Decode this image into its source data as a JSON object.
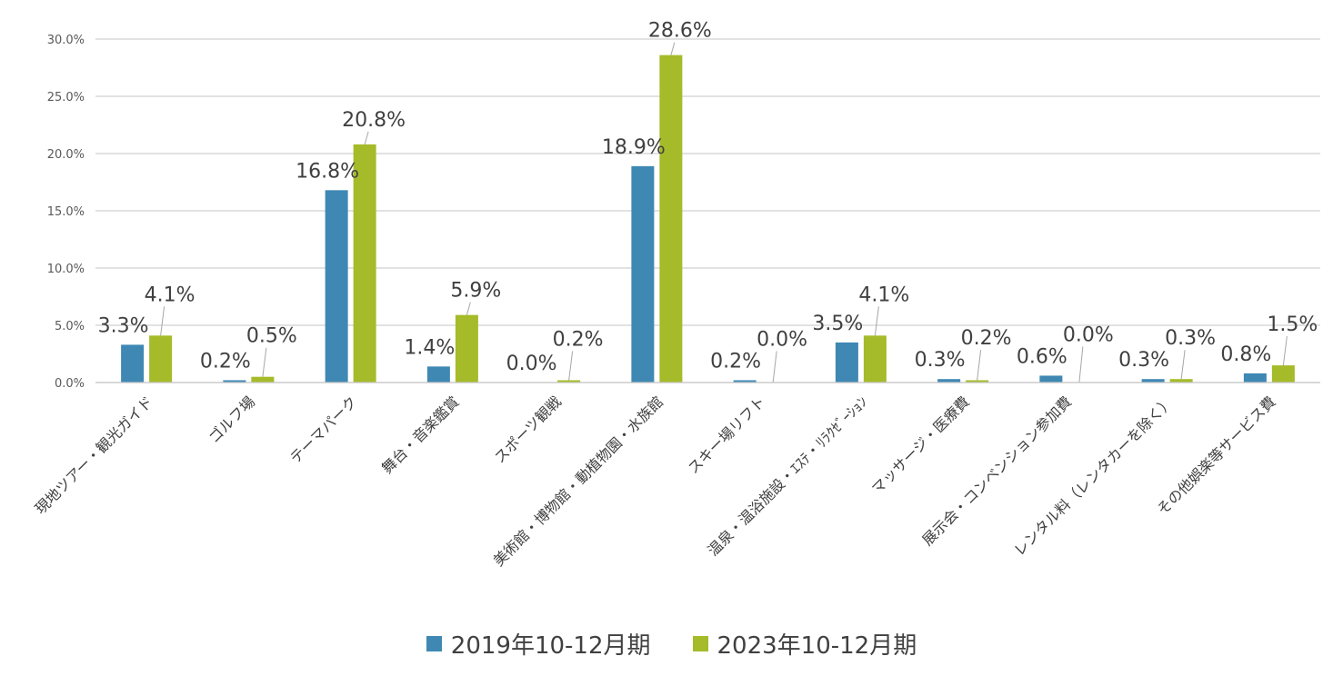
{
  "chart_data": {
    "type": "bar",
    "categories": [
      "現地ツアー・観光ガイド",
      "ゴルフ場",
      "テーマパーク",
      "舞台・音楽鑑賞",
      "スポーツ観戦",
      "美術館・博物館・動植物園・水族館",
      "スキー場リフト",
      "温泉・温浴施設・ｴｽﾃ・ﾘﾗｸｾﾞｰｼｮﾝ",
      "マッサージ・医療費",
      "展示会・コンベンション参加費",
      "レンタル料（レンタカーを除く）",
      "その他娯楽等サービス費"
    ],
    "series": [
      {
        "name": "2019年10-12月期",
        "color": "#3f88b4",
        "values": [
          3.3,
          0.2,
          16.8,
          1.4,
          0.0,
          18.9,
          0.2,
          3.5,
          0.3,
          0.6,
          0.3,
          0.8
        ],
        "labels": [
          "3.3%",
          "0.2%",
          "16.8%",
          "1.4%",
          "0.0%",
          "18.9%",
          "0.2%",
          "3.5%",
          "0.3%",
          "0.6%",
          "0.3%",
          "0.8%"
        ]
      },
      {
        "name": "2023年10-12月期",
        "color": "#a5bb29",
        "values": [
          4.1,
          0.5,
          20.8,
          5.9,
          0.2,
          28.6,
          0.0,
          4.1,
          0.2,
          0.0,
          0.3,
          1.5
        ],
        "labels": [
          "4.1%",
          "0.5%",
          "20.8%",
          "5.9%",
          "0.2%",
          "28.6%",
          "0.0%",
          "4.1%",
          "0.2%",
          "0.0%",
          "0.3%",
          "1.5%"
        ]
      }
    ],
    "yticks": [
      "0.0%",
      "5.0%",
      "10.0%",
      "15.0%",
      "20.0%",
      "25.0%",
      "30.0%"
    ],
    "ylim": [
      0,
      30
    ],
    "grid": true,
    "legend_position": "bottom"
  }
}
